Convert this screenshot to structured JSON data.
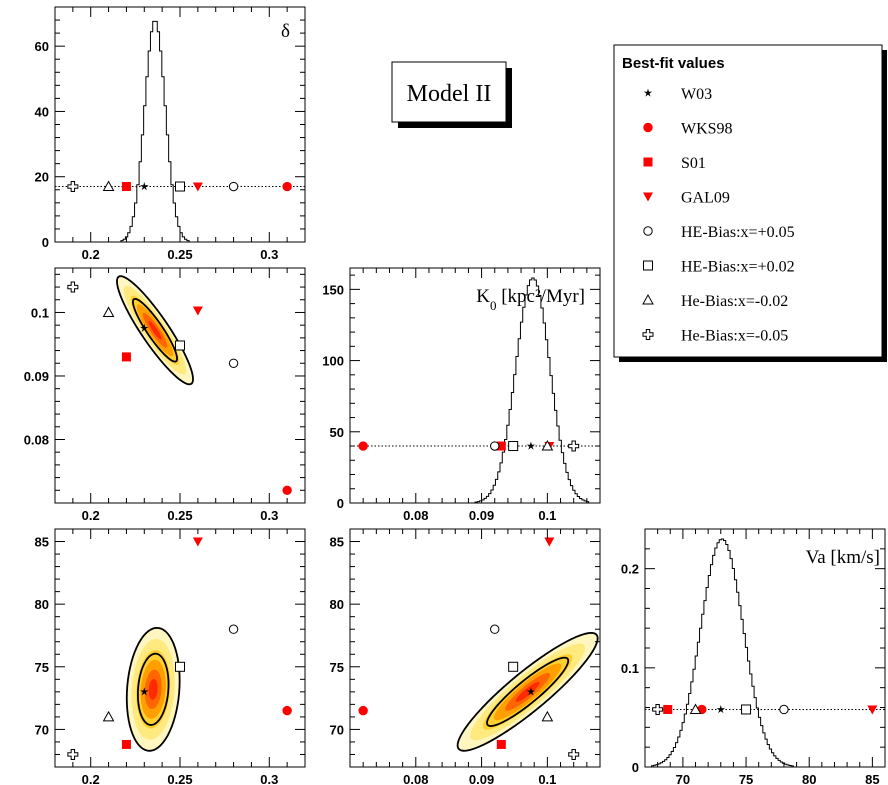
{
  "model_label": "Model II",
  "legend": {
    "title": "Best-fit values",
    "entries": [
      {
        "key": "W03",
        "label": "W03",
        "marker": "star",
        "color": "#000000"
      },
      {
        "key": "WKS98",
        "label": "WKS98",
        "marker": "circle",
        "color": "#ff0000"
      },
      {
        "key": "S01",
        "label": "S01",
        "marker": "square",
        "color": "#ff0000"
      },
      {
        "key": "GAL09",
        "label": "GAL09",
        "marker": "tri-down",
        "color": "#ff0000"
      },
      {
        "key": "HE05",
        "label": "HE-Bias:x=+0.05",
        "marker": "circle-open",
        "color": "#000000"
      },
      {
        "key": "HE02",
        "label": "HE-Bias:x=+0.02",
        "marker": "square-open",
        "color": "#000000"
      },
      {
        "key": "HEm02",
        "label": "He-Bias:x=-0.02",
        "marker": "tri-up-open",
        "color": "#000000"
      },
      {
        "key": "HEm05",
        "label": "He-Bias:x=-0.05",
        "marker": "cross-open",
        "color": "#000000"
      }
    ]
  },
  "colors": {
    "contour": "#000000",
    "fill_outer": "#fff3a0",
    "fill_mid": "#ffc400",
    "fill_core": "#ff3300",
    "red": "#ff0000"
  },
  "chart_data": {
    "type": "corner",
    "parameters": [
      {
        "key": "delta",
        "label": "δ"
      },
      {
        "key": "K0",
        "label": "K",
        "label_sub": "0",
        "label_unit": " [kpc²/Myr]"
      },
      {
        "key": "Va",
        "label": "Va [km/s]"
      }
    ],
    "best_fit_points": {
      "W03": {
        "delta": 0.23,
        "K0": 0.0975,
        "Va": 73
      },
      "WKS98": {
        "delta": 0.31,
        "K0": 0.072,
        "Va": 71.5
      },
      "S01": {
        "delta": 0.22,
        "K0": 0.093,
        "Va": 68.8
      },
      "GAL09": {
        "delta": 0.26,
        "K0": 0.1003,
        "Va": 85
      },
      "HE05": {
        "delta": 0.28,
        "K0": 0.092,
        "Va": 78
      },
      "HE02": {
        "delta": 0.25,
        "K0": 0.0948,
        "Va": 75
      },
      "HEm02": {
        "delta": 0.21,
        "K0": 0.1,
        "Va": 71
      },
      "HEm05": {
        "delta": 0.19,
        "K0": 0.104,
        "Va": 68
      }
    },
    "panels": [
      {
        "id": "hist-delta",
        "type": "histogram",
        "xparam": "delta",
        "xlim": [
          0.18,
          0.32
        ],
        "ylim": [
          0,
          72
        ],
        "xticks": [
          0.2,
          0.25,
          0.3
        ],
        "xtick_labels": [
          "0.2",
          "0.25",
          "0.3"
        ],
        "yticks": [
          0,
          20,
          40,
          60
        ],
        "ytick_labels": [
          "0",
          "20",
          "40",
          "60"
        ],
        "peak_x": 0.236,
        "sigma": 0.0058,
        "peak_y": 68,
        "ref_y": 17,
        "label": "δ"
      },
      {
        "id": "hist-K0",
        "type": "histogram",
        "xparam": "K0",
        "xlim": [
          0.07,
          0.108
        ],
        "ylim": [
          0,
          165
        ],
        "xticks": [
          0.08,
          0.09,
          0.1
        ],
        "xtick_labels": [
          "0.08",
          "0.09",
          "0.1"
        ],
        "yticks": [
          0,
          50,
          100,
          150
        ],
        "ytick_labels": [
          "0",
          "50",
          "100",
          "150"
        ],
        "peak_x": 0.0978,
        "sigma": 0.0026,
        "peak_y": 158,
        "ref_y": 40,
        "label": "K0"
      },
      {
        "id": "hist-Va",
        "type": "histogram",
        "xparam": "Va",
        "xlim": [
          67,
          86
        ],
        "ylim": [
          0,
          0.24
        ],
        "xticks": [
          70,
          75,
          80,
          85
        ],
        "xtick_labels": [
          "70",
          "75",
          "80",
          "85"
        ],
        "yticks": [
          0,
          0.1,
          0.2
        ],
        "ytick_labels": [
          "0",
          "0.1",
          "0.2"
        ],
        "peak_x": 73.1,
        "sigma": 1.7,
        "peak_y": 0.23,
        "ref_y": 0.058,
        "label": "Va [km/s]"
      },
      {
        "id": "contour-delta-K0",
        "type": "contour",
        "xparam": "delta",
        "yparam": "K0",
        "xlim": [
          0.18,
          0.32
        ],
        "ylim": [
          0.07,
          0.107
        ],
        "xticks": [
          0.2,
          0.25,
          0.3
        ],
        "xtick_labels": [
          "0.2",
          "0.25",
          "0.3"
        ],
        "yticks": [
          0.08,
          0.09,
          0.1
        ],
        "ytick_labels": [
          "0.08",
          "0.09",
          "0.1"
        ],
        "center": [
          0.236,
          0.0972
        ],
        "axis_major": [
          0.021,
          -0.0082
        ],
        "axis_minor": [
          0.0036,
          0.0023
        ]
      },
      {
        "id": "contour-delta-Va",
        "type": "contour",
        "xparam": "delta",
        "yparam": "Va",
        "xlim": [
          0.18,
          0.32
        ],
        "ylim": [
          67,
          86
        ],
        "xticks": [
          0.2,
          0.25,
          0.3
        ],
        "xtick_labels": [
          "0.2",
          "0.25",
          "0.3"
        ],
        "yticks": [
          70,
          75,
          80,
          85
        ],
        "ytick_labels": [
          "70",
          "75",
          "80",
          "85"
        ],
        "center": [
          0.235,
          73.2
        ],
        "axis_major": [
          0.003,
          4.9
        ],
        "axis_minor": [
          0.0145,
          -0.3
        ]
      },
      {
        "id": "contour-K0-Va",
        "type": "contour",
        "xparam": "K0",
        "yparam": "Va",
        "xlim": [
          0.07,
          0.108
        ],
        "ylim": [
          67,
          86
        ],
        "xticks": [
          0.08,
          0.09,
          0.1
        ],
        "xtick_labels": [
          "0.08",
          "0.09",
          "0.1"
        ],
        "yticks": [
          70,
          75,
          80,
          85
        ],
        "ytick_labels": [
          "70",
          "75",
          "80",
          "85"
        ],
        "center": [
          0.097,
          73
        ],
        "axis_major": [
          0.0104,
          4.6
        ],
        "axis_minor": [
          0.0023,
          -1.0
        ]
      }
    ]
  }
}
